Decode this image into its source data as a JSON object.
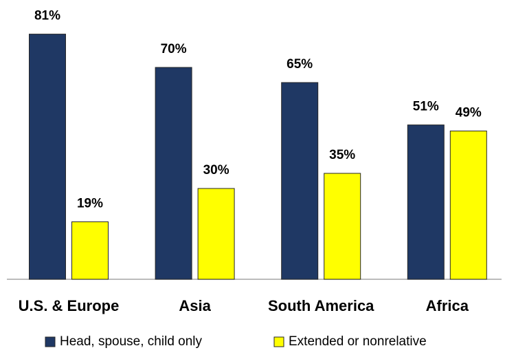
{
  "chart_data": {
    "type": "bar",
    "categories": [
      "U.S. & Europe",
      "Asia",
      "South America",
      "Africa"
    ],
    "series": [
      {
        "name": "Head, spouse, child only",
        "color": "#1f3864",
        "values": [
          81,
          70,
          65,
          51
        ],
        "value_labels": [
          "81%",
          "70%",
          "65%",
          "51%"
        ]
      },
      {
        "name": "Extended or nonrelative",
        "color": "#ffff00",
        "values": [
          19,
          30,
          35,
          49
        ],
        "value_labels": [
          "19%",
          "30%",
          "35%",
          "49%"
        ]
      }
    ]
  }
}
